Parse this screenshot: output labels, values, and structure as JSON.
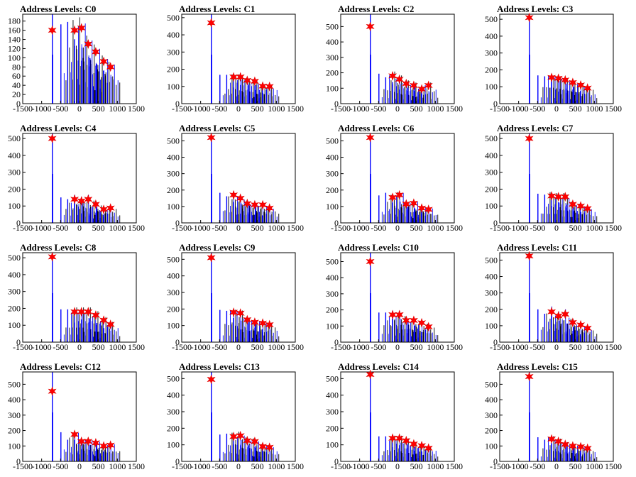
{
  "chart_data": [
    {
      "type": "histogram",
      "title": "Address Levels: C0",
      "xticks": [
        -1500,
        -1000,
        -500,
        0,
        500,
        1000,
        1500
      ],
      "xlim": [
        -1500,
        1500
      ],
      "yticks": [
        0,
        20,
        40,
        60,
        80,
        100,
        120,
        140,
        160,
        180
      ],
      "ylim": [
        0,
        195
      ],
      "peaks": [
        {
          "x": -720,
          "y": 160
        },
        {
          "x": -130,
          "y": 160
        },
        {
          "x": 50,
          "y": 165
        },
        {
          "x": 230,
          "y": 130
        },
        {
          "x": 430,
          "y": 113
        },
        {
          "x": 640,
          "y": 92
        },
        {
          "x": 820,
          "y": 80
        }
      ]
    },
    {
      "type": "histogram",
      "title": "Address Levels: C1",
      "xticks": [
        -1500,
        -1000,
        -500,
        0,
        500,
        1000,
        1500
      ],
      "xlim": [
        -1500,
        1500
      ],
      "yticks": [
        0,
        100,
        200,
        300,
        400,
        500
      ],
      "ylim": [
        0,
        520
      ],
      "peaks": [
        {
          "x": -720,
          "y": 470
        },
        {
          "x": -130,
          "y": 155
        },
        {
          "x": 50,
          "y": 155
        },
        {
          "x": 230,
          "y": 135
        },
        {
          "x": 430,
          "y": 130
        },
        {
          "x": 640,
          "y": 102
        },
        {
          "x": 820,
          "y": 100
        }
      ]
    },
    {
      "type": "histogram",
      "title": "Address Levels: C2",
      "xticks": [
        -1500,
        -1000,
        -500,
        0,
        500,
        1000,
        1500
      ],
      "xlim": [
        -1500,
        1500
      ],
      "yticks": [
        0,
        100,
        200,
        300,
        400,
        500
      ],
      "ylim": [
        0,
        580
      ],
      "peaks": [
        {
          "x": -720,
          "y": 500
        },
        {
          "x": -130,
          "y": 180
        },
        {
          "x": 50,
          "y": 158
        },
        {
          "x": 230,
          "y": 130
        },
        {
          "x": 430,
          "y": 118
        },
        {
          "x": 640,
          "y": 95
        },
        {
          "x": 820,
          "y": 118
        }
      ]
    },
    {
      "type": "histogram",
      "title": "Address Levels: C3",
      "xticks": [
        -1500,
        -1000,
        -500,
        0,
        500,
        1000,
        1500
      ],
      "xlim": [
        -1500,
        1500
      ],
      "yticks": [
        0,
        100,
        200,
        300,
        400,
        500
      ],
      "ylim": [
        0,
        530
      ],
      "peaks": [
        {
          "x": -720,
          "y": 510
        },
        {
          "x": -130,
          "y": 155
        },
        {
          "x": 50,
          "y": 150
        },
        {
          "x": 230,
          "y": 140
        },
        {
          "x": 430,
          "y": 125
        },
        {
          "x": 640,
          "y": 110
        },
        {
          "x": 820,
          "y": 92
        }
      ]
    },
    {
      "type": "histogram",
      "title": "Address Levels: C4",
      "xticks": [
        -1500,
        -1000,
        -500,
        0,
        500,
        1000,
        1500
      ],
      "xlim": [
        -1500,
        1500
      ],
      "yticks": [
        0,
        100,
        200,
        300,
        400,
        500
      ],
      "ylim": [
        0,
        530
      ],
      "peaks": [
        {
          "x": -720,
          "y": 500
        },
        {
          "x": -130,
          "y": 140
        },
        {
          "x": 50,
          "y": 130
        },
        {
          "x": 230,
          "y": 140
        },
        {
          "x": 430,
          "y": 110
        },
        {
          "x": 640,
          "y": 80
        },
        {
          "x": 820,
          "y": 88
        }
      ]
    },
    {
      "type": "histogram",
      "title": "Address Levels: C5",
      "xticks": [
        -1500,
        -1000,
        -500,
        0,
        500,
        1000,
        1500
      ],
      "xlim": [
        -1500,
        1500
      ],
      "yticks": [
        0,
        100,
        200,
        300,
        400,
        500
      ],
      "ylim": [
        0,
        545
      ],
      "peaks": [
        {
          "x": -720,
          "y": 520
        },
        {
          "x": -130,
          "y": 170
        },
        {
          "x": 50,
          "y": 150
        },
        {
          "x": 230,
          "y": 118
        },
        {
          "x": 430,
          "y": 110
        },
        {
          "x": 640,
          "y": 110
        },
        {
          "x": 820,
          "y": 90
        }
      ]
    },
    {
      "type": "histogram",
      "title": "Address Levels: C6",
      "xticks": [
        -1500,
        -1000,
        -500,
        0,
        500,
        1000,
        1500
      ],
      "xlim": [
        -1500,
        1500
      ],
      "yticks": [
        0,
        100,
        200,
        300,
        400,
        500
      ],
      "ylim": [
        0,
        545
      ],
      "peaks": [
        {
          "x": -720,
          "y": 520
        },
        {
          "x": -130,
          "y": 155
        },
        {
          "x": 50,
          "y": 170
        },
        {
          "x": 230,
          "y": 115
        },
        {
          "x": 430,
          "y": 120
        },
        {
          "x": 640,
          "y": 90
        },
        {
          "x": 820,
          "y": 82
        }
      ]
    },
    {
      "type": "histogram",
      "title": "Address Levels: C7",
      "xticks": [
        -1500,
        -1000,
        -500,
        0,
        500,
        1000,
        1500
      ],
      "xlim": [
        -1500,
        1500
      ],
      "yticks": [
        0,
        100,
        200,
        300,
        400,
        500
      ],
      "ylim": [
        0,
        530
      ],
      "peaks": [
        {
          "x": -720,
          "y": 500
        },
        {
          "x": -130,
          "y": 160
        },
        {
          "x": 50,
          "y": 155
        },
        {
          "x": 230,
          "y": 155
        },
        {
          "x": 430,
          "y": 110
        },
        {
          "x": 640,
          "y": 100
        },
        {
          "x": 820,
          "y": 85
        }
      ]
    },
    {
      "type": "histogram",
      "title": "Address Levels: C8",
      "xticks": [
        -1500,
        -1000,
        -500,
        0,
        500,
        1000,
        1500
      ],
      "xlim": [
        -1500,
        1500
      ],
      "yticks": [
        0,
        100,
        200,
        300,
        400,
        500
      ],
      "ylim": [
        0,
        530
      ],
      "peaks": [
        {
          "x": -720,
          "y": 505
        },
        {
          "x": -130,
          "y": 180
        },
        {
          "x": 50,
          "y": 180
        },
        {
          "x": 230,
          "y": 180
        },
        {
          "x": 430,
          "y": 160
        },
        {
          "x": 640,
          "y": 130
        },
        {
          "x": 820,
          "y": 105
        }
      ]
    },
    {
      "type": "histogram",
      "title": "Address Levels: C9",
      "xticks": [
        -1500,
        -1000,
        -500,
        0,
        500,
        1000,
        1500
      ],
      "xlim": [
        -1500,
        1500
      ],
      "yticks": [
        0,
        100,
        200,
        300,
        400,
        500
      ],
      "ylim": [
        0,
        540
      ],
      "peaks": [
        {
          "x": -720,
          "y": 510
        },
        {
          "x": -130,
          "y": 180
        },
        {
          "x": 50,
          "y": 175
        },
        {
          "x": 230,
          "y": 135
        },
        {
          "x": 430,
          "y": 120
        },
        {
          "x": 640,
          "y": 115
        },
        {
          "x": 820,
          "y": 105
        }
      ]
    },
    {
      "type": "histogram",
      "title": "Address Levels: C10",
      "xticks": [
        -1500,
        -1000,
        -500,
        0,
        500,
        1000,
        1500
      ],
      "xlim": [
        -1500,
        1500
      ],
      "yticks": [
        0,
        100,
        200,
        300,
        400,
        500
      ],
      "ylim": [
        0,
        555
      ],
      "peaks": [
        {
          "x": -720,
          "y": 500
        },
        {
          "x": -130,
          "y": 170
        },
        {
          "x": 50,
          "y": 170
        },
        {
          "x": 230,
          "y": 135
        },
        {
          "x": 430,
          "y": 135
        },
        {
          "x": 640,
          "y": 120
        },
        {
          "x": 820,
          "y": 95
        }
      ]
    },
    {
      "type": "histogram",
      "title": "Address Levels: C11",
      "xticks": [
        -1500,
        -1000,
        -500,
        0,
        500,
        1000,
        1500
      ],
      "xlim": [
        -1500,
        1500
      ],
      "yticks": [
        0,
        100,
        200,
        300,
        400,
        500
      ],
      "ylim": [
        0,
        545
      ],
      "peaks": [
        {
          "x": -720,
          "y": 525
        },
        {
          "x": -130,
          "y": 185
        },
        {
          "x": 50,
          "y": 160
        },
        {
          "x": 230,
          "y": 170
        },
        {
          "x": 430,
          "y": 120
        },
        {
          "x": 640,
          "y": 105
        },
        {
          "x": 820,
          "y": 85
        }
      ]
    },
    {
      "type": "histogram",
      "title": "Address Levels: C12",
      "xticks": [
        -1500,
        -1000,
        -500,
        0,
        500,
        1000,
        1500
      ],
      "xlim": [
        -1500,
        1500
      ],
      "yticks": [
        0,
        100,
        200,
        300,
        400,
        500
      ],
      "ylim": [
        0,
        580
      ],
      "peaks": [
        {
          "x": -720,
          "y": 455
        },
        {
          "x": -130,
          "y": 175
        },
        {
          "x": 50,
          "y": 130
        },
        {
          "x": 230,
          "y": 130
        },
        {
          "x": 430,
          "y": 120
        },
        {
          "x": 640,
          "y": 100
        },
        {
          "x": 820,
          "y": 105
        }
      ]
    },
    {
      "type": "histogram",
      "title": "Address Levels: C13",
      "xticks": [
        -1500,
        -1000,
        -500,
        0,
        500,
        1000,
        1500
      ],
      "xlim": [
        -1500,
        1500
      ],
      "yticks": [
        0,
        100,
        200,
        300,
        400,
        500
      ],
      "ylim": [
        0,
        540
      ],
      "peaks": [
        {
          "x": -720,
          "y": 495
        },
        {
          "x": -130,
          "y": 150
        },
        {
          "x": 50,
          "y": 155
        },
        {
          "x": 230,
          "y": 125
        },
        {
          "x": 430,
          "y": 120
        },
        {
          "x": 640,
          "y": 90
        },
        {
          "x": 820,
          "y": 85
        }
      ]
    },
    {
      "type": "histogram",
      "title": "Address Levels: C14",
      "xticks": [
        -1500,
        -1000,
        -500,
        0,
        500,
        1000,
        1500
      ],
      "xlim": [
        -1500,
        1500
      ],
      "yticks": [
        0,
        100,
        200,
        300,
        400,
        500
      ],
      "ylim": [
        0,
        540
      ],
      "peaks": [
        {
          "x": -720,
          "y": 525
        },
        {
          "x": -130,
          "y": 140
        },
        {
          "x": 50,
          "y": 140
        },
        {
          "x": 230,
          "y": 125
        },
        {
          "x": 430,
          "y": 105
        },
        {
          "x": 640,
          "y": 95
        },
        {
          "x": 820,
          "y": 80
        }
      ]
    },
    {
      "type": "histogram",
      "title": "Address Levels: C15",
      "xticks": [
        -1500,
        -1000,
        -500,
        0,
        500,
        1000,
        1500
      ],
      "xlim": [
        -1500,
        1500
      ],
      "yticks": [
        0,
        100,
        200,
        300,
        400,
        500
      ],
      "ylim": [
        0,
        580
      ],
      "peaks": [
        {
          "x": -720,
          "y": 550
        },
        {
          "x": -130,
          "y": 145
        },
        {
          "x": 50,
          "y": 130
        },
        {
          "x": 230,
          "y": 110
        },
        {
          "x": 430,
          "y": 100
        },
        {
          "x": 640,
          "y": 95
        },
        {
          "x": 820,
          "y": 85
        }
      ]
    }
  ],
  "colors": {
    "histogram": "#0000ff",
    "fill": "#000000",
    "marker": "#ff0000",
    "marker_edge": "#e00000"
  }
}
